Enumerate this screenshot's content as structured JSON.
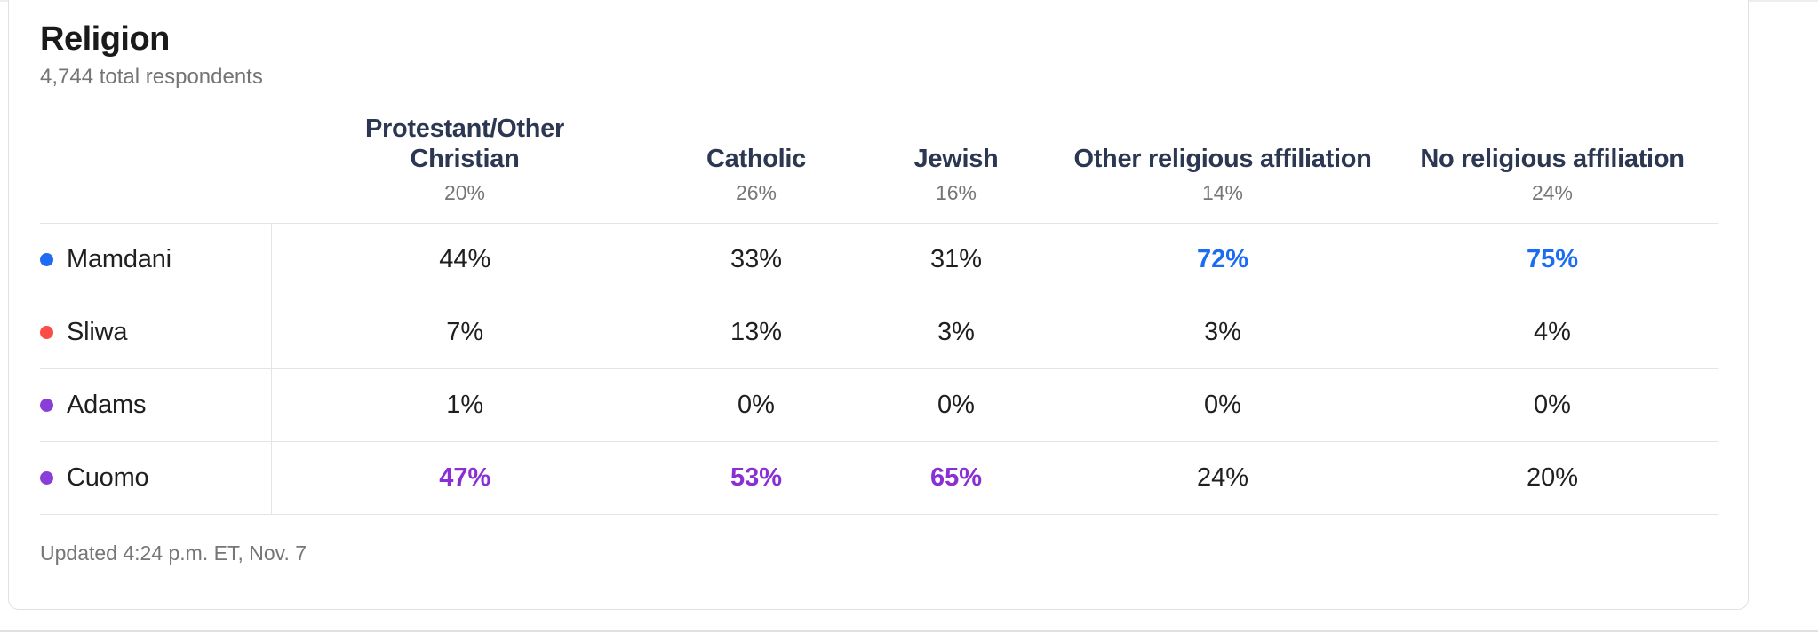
{
  "card": {
    "title": "Religion",
    "subtitle": "4,744 total respondents",
    "footer": "Updated 4:24 p.m. ET, Nov. 7"
  },
  "colors": {
    "highlight_blue": "#1a6cf4",
    "highlight_purple": "#8a2fd4",
    "dot_mamdani_blue": "#1f6bf3",
    "dot_sliwa_red": "#fa4d45",
    "dot_adams_purple": "#8a3ed8",
    "dot_cuomo_purple": "#8a3ed8",
    "header_navy": "#2c3752",
    "separator_gray": "#e4e4e4"
  },
  "table": {
    "columns": [
      {
        "label": "Protestant/Other Christian",
        "share": "20%",
        "slug": "protestant-other-christian"
      },
      {
        "label": "Catholic",
        "share": "26%",
        "slug": "catholic"
      },
      {
        "label": "Jewish",
        "share": "16%",
        "slug": "jewish"
      },
      {
        "label": "Other religious affiliation",
        "share": "14%",
        "slug": "other-religious-affiliation"
      },
      {
        "label": "No religious affiliation",
        "share": "24%",
        "slug": "no-religious-affiliation"
      }
    ],
    "rows": [
      {
        "name": "Mamdani",
        "dot_color": "#1f6bf3",
        "values": [
          "44%",
          "33%",
          "31%",
          "72%",
          "75%"
        ],
        "highlights": [
          null,
          null,
          null,
          "blue",
          "blue"
        ]
      },
      {
        "name": "Sliwa",
        "dot_color": "#fa4d45",
        "values": [
          "7%",
          "13%",
          "3%",
          "3%",
          "4%"
        ],
        "highlights": [
          null,
          null,
          null,
          null,
          null
        ]
      },
      {
        "name": "Adams",
        "dot_color": "#8a3ed8",
        "values": [
          "1%",
          "0%",
          "0%",
          "0%",
          "0%"
        ],
        "highlights": [
          null,
          null,
          null,
          null,
          null
        ]
      },
      {
        "name": "Cuomo",
        "dot_color": "#8a3ed8",
        "values": [
          "47%",
          "53%",
          "65%",
          "24%",
          "20%"
        ],
        "highlights": [
          "purple",
          "purple",
          "purple",
          null,
          null
        ]
      }
    ]
  },
  "chart_data": {
    "type": "table",
    "title": "Religion",
    "subtitle": "4,744 total respondents",
    "categories": [
      "Protestant/Other Christian",
      "Catholic",
      "Jewish",
      "Other religious affiliation",
      "No religious affiliation"
    ],
    "category_shares_pct": [
      20,
      26,
      16,
      14,
      24
    ],
    "series": [
      {
        "name": "Mamdani",
        "color": "#1f6bf3",
        "values": [
          44,
          33,
          31,
          72,
          75
        ],
        "highlighted": [
          false,
          false,
          false,
          true,
          true
        ]
      },
      {
        "name": "Sliwa",
        "color": "#fa4d45",
        "values": [
          7,
          13,
          3,
          3,
          4
        ],
        "highlighted": [
          false,
          false,
          false,
          false,
          false
        ]
      },
      {
        "name": "Adams",
        "color": "#8a3ed8",
        "values": [
          1,
          0,
          0,
          0,
          0
        ],
        "highlighted": [
          false,
          false,
          false,
          false,
          false
        ]
      },
      {
        "name": "Cuomo",
        "color": "#8a3ed8",
        "values": [
          47,
          53,
          65,
          24,
          20
        ],
        "highlighted": [
          true,
          true,
          true,
          false,
          false
        ]
      }
    ],
    "updated": "Updated 4:24 p.m. ET, Nov. 7",
    "layout": "rows are candidates, columns are religion groups, values are percent support"
  }
}
